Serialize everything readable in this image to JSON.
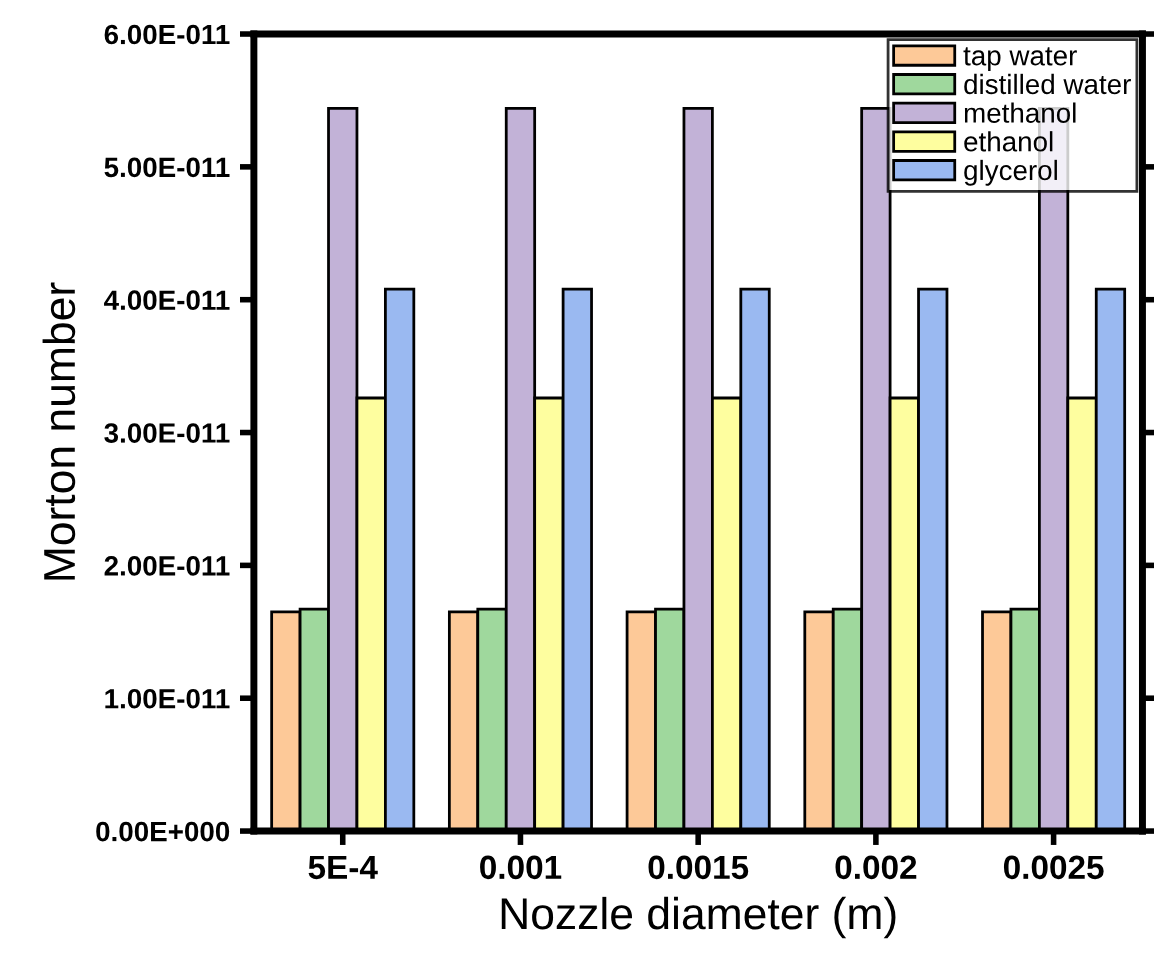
{
  "chart_data": {
    "type": "bar",
    "xlabel": "Nozzle diameter (m)",
    "ylabel": "Morton number",
    "categories": [
      "5E-4",
      "0.001",
      "0.0015",
      "0.002",
      "0.0025"
    ],
    "series": [
      {
        "name": "tap water",
        "color": "#fdc998",
        "values": [
          1.65e-11,
          1.65e-11,
          1.65e-11,
          1.65e-11,
          1.65e-11
        ]
      },
      {
        "name": "distilled water",
        "color": "#9fd89d",
        "values": [
          1.67e-11,
          1.67e-11,
          1.67e-11,
          1.67e-11,
          1.67e-11
        ]
      },
      {
        "name": "methanol",
        "color": "#c2b2d7",
        "values": [
          5.44e-11,
          5.44e-11,
          5.44e-11,
          5.44e-11,
          5.44e-11
        ]
      },
      {
        "name": "ethanol",
        "color": "#fefe9f",
        "values": [
          3.26e-11,
          3.26e-11,
          3.26e-11,
          3.26e-11,
          3.26e-11
        ]
      },
      {
        "name": "glycerol",
        "color": "#9ab9f1",
        "values": [
          4.08e-11,
          4.08e-11,
          4.08e-11,
          4.08e-11,
          4.08e-11
        ]
      }
    ],
    "ylim": [
      0,
      6e-11
    ],
    "yticks": [
      {
        "value": 0,
        "label": "0.00E+000"
      },
      {
        "value": 1e-11,
        "label": "1.00E-011"
      },
      {
        "value": 2e-11,
        "label": "2.00E-011"
      },
      {
        "value": 3e-11,
        "label": "3.00E-011"
      },
      {
        "value": 4e-11,
        "label": "4.00E-011"
      },
      {
        "value": 5e-11,
        "label": "5.00E-011"
      },
      {
        "value": 6e-11,
        "label": "6.00E-011"
      }
    ],
    "legend": "top right",
    "grid": false
  }
}
